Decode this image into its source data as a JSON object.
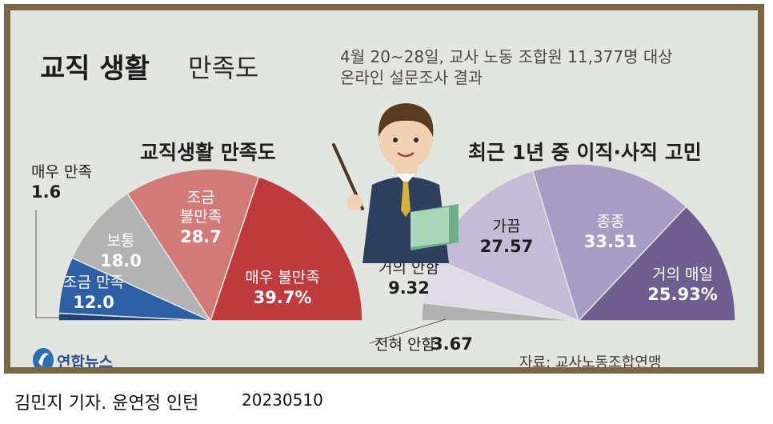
{
  "header": {
    "title_bold": "교직 생활",
    "title_light": "만족도",
    "survey_note": "4월 20~28일, 교사 노동 조합원 11,377명 대상\n온라인 설문조사 결과"
  },
  "colors": {
    "frame": "#7a6743",
    "panel": "#e3e5e1",
    "satisfaction": [
      "#2c5fa3",
      "#b3b3b3",
      "#d27a78",
      "#bf3a3c"
    ],
    "resignation": [
      "#b0b0b0",
      "#dedbe6",
      "#c4bcd6",
      "#a99cc4",
      "#6f5d8d"
    ]
  },
  "chart_data": [
    {
      "type": "pie",
      "title": "교직생활 만족도",
      "style": "half-pie",
      "categories": [
        "매우 만족",
        "조금 만족",
        "보통",
        "조금 불만족",
        "매우 불만족"
      ],
      "values": [
        1.6,
        12.0,
        18.0,
        28.7,
        39.7
      ],
      "value_labels": [
        "1.6",
        "12.0",
        "18.0",
        "28.7",
        "39.7%"
      ],
      "label_lines": [
        [
          "매우 만족"
        ],
        [
          "조금 만족"
        ],
        [
          "보통"
        ],
        [
          "조금",
          "불만족"
        ],
        [
          "매우 불만족"
        ]
      ],
      "colors": [
        "#1d4276",
        "#2c5fa3",
        "#b3b3b3",
        "#d27a78",
        "#bf3a3c"
      ]
    },
    {
      "type": "pie",
      "title": "최근 1년 중 이직·사직 고민",
      "style": "half-pie",
      "categories": [
        "전혀 안함",
        "거의 안함",
        "가끔",
        "종종",
        "거의 매일"
      ],
      "values": [
        3.67,
        9.32,
        27.57,
        33.51,
        25.93
      ],
      "value_labels": [
        "3.67",
        "9.32",
        "27.57",
        "33.51",
        "25.93%"
      ],
      "label_lines": [
        [
          "전혀 안함"
        ],
        [
          "거의 안함"
        ],
        [
          "가끔"
        ],
        [
          "종종"
        ],
        [
          "거의 매일"
        ]
      ],
      "colors": [
        "#b0b0b0",
        "#dedbe6",
        "#c4bcd6",
        "#a99cc4",
        "#6f5d8d"
      ]
    }
  ],
  "footer": {
    "logo_text": "연합뉴스",
    "source": "자료: 교사노동조합연맹",
    "credit": "김민지 기자. 윤연정 인턴",
    "date": "20230510"
  }
}
